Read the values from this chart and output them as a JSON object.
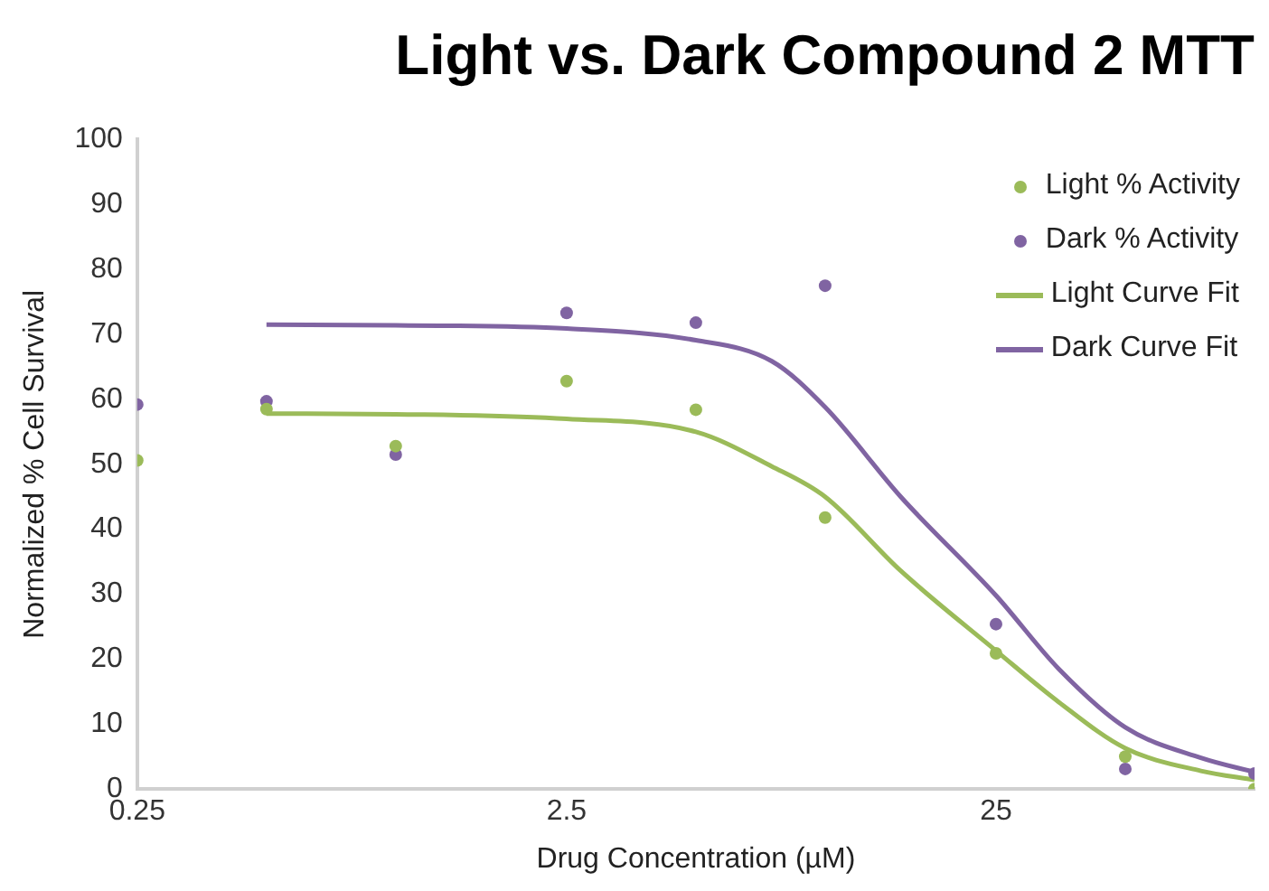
{
  "chart_data": {
    "type": "scatter",
    "title": "Light vs. Dark Compound 2 MTT",
    "xlabel": "Drug Concentration (µM)",
    "ylabel": "Normalized % Cell Survival",
    "log": "x",
    "xlim": [
      0.25,
      100
    ],
    "xticks": [
      0.25,
      2.5,
      25
    ],
    "ylim": [
      0,
      100
    ],
    "yticks": [
      0,
      10,
      20,
      30,
      40,
      50,
      60,
      70,
      80,
      90,
      100
    ],
    "grid": false,
    "legend": "top right",
    "marker": "circle",
    "x": [
      0.25,
      0.5,
      1,
      2.5,
      5,
      10,
      25,
      50,
      100
    ],
    "series": [
      {
        "name": "Light % Activity",
        "color": "#9bbb59",
        "values": [
          50.6,
          58.5,
          52.8,
          62.8,
          58.4,
          41.8,
          20.9,
          5.0,
          0
        ]
      },
      {
        "name": "Dark % Activity",
        "color": "#8064a2",
        "values": [
          59.2,
          59.7,
          51.5,
          73.3,
          71.8,
          77.5,
          25.4,
          3.1,
          2.4
        ]
      },
      {
        "name": "Light Curve Fit",
        "type": "line",
        "marker": "none",
        "color": "#9bbb59",
        "x": [
          0.5,
          1,
          2.5,
          5,
          7.5,
          10,
          15,
          25,
          35,
          50,
          75,
          100
        ],
        "values": [
          57.8,
          57.7,
          57,
          55,
          49.7,
          45,
          33.6,
          21.3,
          13.4,
          6.3,
          2.8,
          1.4
        ]
      },
      {
        "name": "Dark Curve Fit",
        "type": "line",
        "marker": "none",
        "color": "#8064a2",
        "x": [
          0.5,
          1,
          2.5,
          5,
          7.5,
          10,
          15,
          25,
          35,
          50,
          75,
          100
        ],
        "values": [
          71.5,
          71.4,
          70.9,
          69.1,
          65.9,
          58.8,
          45,
          29.8,
          18.5,
          9.5,
          4.8,
          2.6
        ]
      }
    ]
  }
}
